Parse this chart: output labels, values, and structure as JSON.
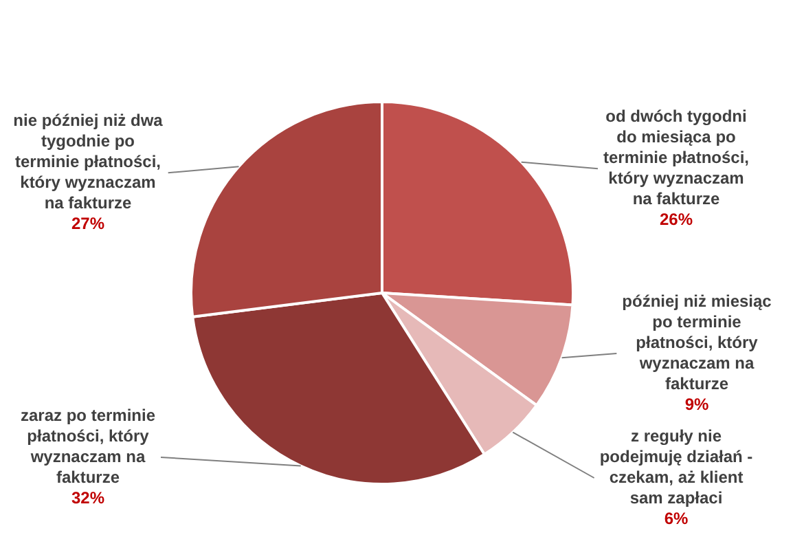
{
  "chart_data": {
    "type": "pie",
    "categories": [
      "od dwóch tygodni do miesiąca po terminie płatności, który wyznaczam na fakturze",
      "później niż miesiąc po terminie płatności, który wyznaczam na fakturze",
      "z reguły nie podejmuję działań - czekam, aż klient sam zapłaci",
      "zaraz po terminie płatności, który wyznaczam na fakturze",
      "nie później niż dwa tygodnie po terminie płatności, który wyznaczam na fakturze"
    ],
    "values": [
      26,
      9,
      6,
      32,
      27
    ],
    "colors": [
      "#c0504d",
      "#d99694",
      "#e6b9b8",
      "#8e3734",
      "#a9433f"
    ],
    "value_labels": [
      "26%",
      "9%",
      "6%",
      "32%",
      "27%"
    ],
    "legend": false
  }
}
